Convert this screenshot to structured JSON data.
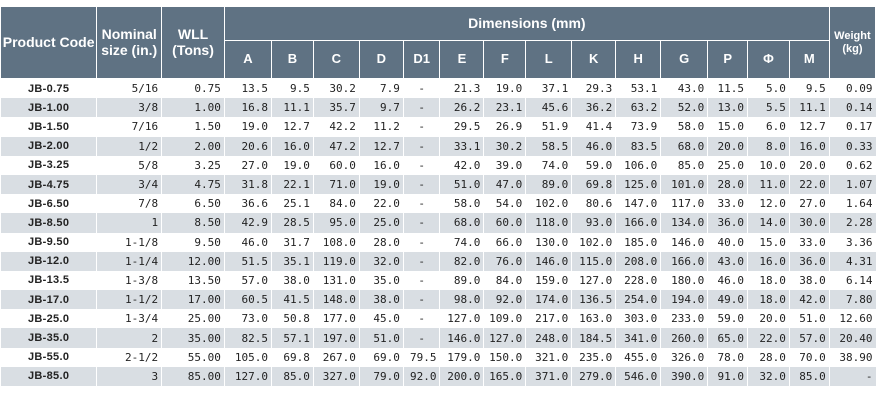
{
  "table": {
    "headers": {
      "product_code": "Product Code",
      "nominal_size": "Nominal size (in.)",
      "wll": "WLL (Tons)",
      "dimensions": "Dimensions (mm)",
      "weight": "Weight (kg)"
    },
    "dim_columns": [
      "A",
      "B",
      "C",
      "D",
      "D1",
      "E",
      "F",
      "L",
      "K",
      "H",
      "G",
      "P",
      "Φ",
      "M"
    ],
    "rows": [
      [
        "JB-0.75",
        "5/16",
        "0.75",
        "13.5",
        "9.5",
        "30.2",
        "7.9",
        "-",
        "21.3",
        "19.0",
        "37.1",
        "29.3",
        "53.1",
        "43.0",
        "11.5",
        "5.0",
        "9.5",
        "0.09"
      ],
      [
        "JB-1.00",
        "3/8",
        "1.00",
        "16.8",
        "11.1",
        "35.7",
        "9.7",
        "-",
        "26.2",
        "23.1",
        "45.6",
        "36.2",
        "63.2",
        "52.0",
        "13.0",
        "5.5",
        "11.1",
        "0.14"
      ],
      [
        "JB-1.50",
        "7/16",
        "1.50",
        "19.0",
        "12.7",
        "42.2",
        "11.2",
        "-",
        "29.5",
        "26.9",
        "51.9",
        "41.4",
        "73.9",
        "58.0",
        "15.0",
        "6.0",
        "12.7",
        "0.17"
      ],
      [
        "JB-2.00",
        "1/2",
        "2.00",
        "20.6",
        "16.0",
        "47.2",
        "12.7",
        "-",
        "33.1",
        "30.2",
        "58.5",
        "46.0",
        "83.5",
        "68.0",
        "20.0",
        "8.0",
        "16.0",
        "0.33"
      ],
      [
        "JB-3.25",
        "5/8",
        "3.25",
        "27.0",
        "19.0",
        "60.0",
        "16.0",
        "-",
        "42.0",
        "39.0",
        "74.0",
        "59.0",
        "106.0",
        "85.0",
        "25.0",
        "10.0",
        "20.0",
        "0.62"
      ],
      [
        "JB-4.75",
        "3/4",
        "4.75",
        "31.8",
        "22.1",
        "71.0",
        "19.0",
        "-",
        "51.0",
        "47.0",
        "89.0",
        "69.8",
        "125.0",
        "101.0",
        "28.0",
        "11.0",
        "22.0",
        "1.07"
      ],
      [
        "JB-6.50",
        "7/8",
        "6.50",
        "36.6",
        "25.1",
        "84.0",
        "22.0",
        "-",
        "58.0",
        "54.0",
        "102.0",
        "80.6",
        "147.0",
        "117.0",
        "33.0",
        "12.0",
        "27.0",
        "1.64"
      ],
      [
        "JB-8.50",
        "1",
        "8.50",
        "42.9",
        "28.5",
        "95.0",
        "25.0",
        "-",
        "68.0",
        "60.0",
        "118.0",
        "93.0",
        "166.0",
        "134.0",
        "36.0",
        "14.0",
        "30.0",
        "2.28"
      ],
      [
        "JB-9.50",
        "1-1/8",
        "9.50",
        "46.0",
        "31.7",
        "108.0",
        "28.0",
        "-",
        "74.0",
        "66.0",
        "130.0",
        "102.0",
        "185.0",
        "146.0",
        "40.0",
        "15.0",
        "33.0",
        "3.36"
      ],
      [
        "JB-12.0",
        "1-1/4",
        "12.00",
        "51.5",
        "35.1",
        "119.0",
        "32.0",
        "-",
        "82.0",
        "76.0",
        "146.0",
        "115.0",
        "208.0",
        "166.0",
        "43.0",
        "16.0",
        "36.0",
        "4.31"
      ],
      [
        "JB-13.5",
        "1-3/8",
        "13.50",
        "57.0",
        "38.0",
        "131.0",
        "35.0",
        "-",
        "89.0",
        "84.0",
        "159.0",
        "127.0",
        "228.0",
        "180.0",
        "46.0",
        "18.0",
        "38.0",
        "6.14"
      ],
      [
        "JB-17.0",
        "1-1/2",
        "17.00",
        "60.5",
        "41.5",
        "148.0",
        "38.0",
        "-",
        "98.0",
        "92.0",
        "174.0",
        "136.5",
        "254.0",
        "194.0",
        "49.0",
        "18.0",
        "42.0",
        "7.80"
      ],
      [
        "JB-25.0",
        "1-3/4",
        "25.00",
        "73.0",
        "50.8",
        "177.0",
        "45.0",
        "-",
        "127.0",
        "109.0",
        "217.0",
        "163.0",
        "303.0",
        "233.0",
        "59.0",
        "20.0",
        "51.0",
        "12.60"
      ],
      [
        "JB-35.0",
        "2",
        "35.00",
        "82.5",
        "57.1",
        "197.0",
        "51.0",
        "-",
        "146.0",
        "127.0",
        "248.0",
        "184.5",
        "341.0",
        "260.0",
        "65.0",
        "22.0",
        "57.0",
        "20.40"
      ],
      [
        "JB-55.0",
        "2-1/2",
        "55.00",
        "105.0",
        "69.8",
        "267.0",
        "69.0",
        "79.5",
        "179.0",
        "150.0",
        "321.0",
        "235.0",
        "455.0",
        "326.0",
        "78.0",
        "28.0",
        "70.0",
        "38.90"
      ],
      [
        "JB-85.0",
        "3",
        "85.00",
        "127.0",
        "85.0",
        "327.0",
        "79.0",
        "92.0",
        "200.0",
        "165.0",
        "371.0",
        "279.0",
        "546.0",
        "390.0",
        "91.0",
        "32.0",
        "85.0",
        "-"
      ]
    ]
  }
}
